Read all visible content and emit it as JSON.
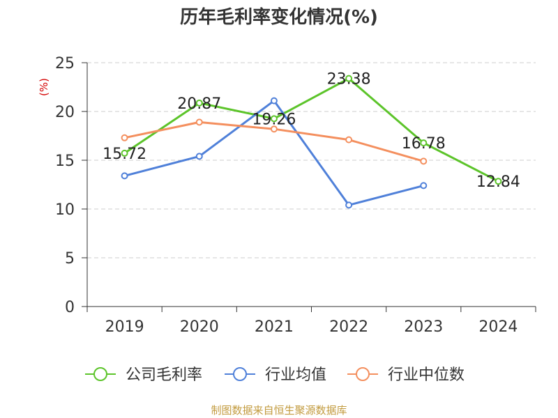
{
  "chart_data": {
    "type": "line",
    "title": "历年毛利率变化情况(%)",
    "ylabel": "(%)",
    "ylim": [
      0,
      25
    ],
    "yticks": [
      0,
      5,
      10,
      15,
      20,
      25
    ],
    "grid": true,
    "legend_position": "bottom",
    "categories": [
      "2019",
      "2020",
      "2021",
      "2022",
      "2023",
      "2024"
    ],
    "series": [
      {
        "name": "公司毛利率",
        "color": "#5cc42a",
        "data_labels": true,
        "values": [
          15.72,
          20.87,
          19.26,
          23.38,
          16.78,
          12.84
        ]
      },
      {
        "name": "行业均值",
        "color": "#4f80d9",
        "data_labels": false,
        "values": [
          13.4,
          15.4,
          21.1,
          10.4,
          12.4,
          null
        ]
      },
      {
        "name": "行业中位数",
        "color": "#f48f5e",
        "data_labels": false,
        "values": [
          17.3,
          18.9,
          18.2,
          17.1,
          14.9,
          null
        ]
      }
    ]
  },
  "source_note": "制图数据来自恒生聚源数据库",
  "colors": {
    "grid": "#cccccc",
    "axis": "#333333",
    "ylabel": "#d40000",
    "source_note": "#c29b3f"
  }
}
